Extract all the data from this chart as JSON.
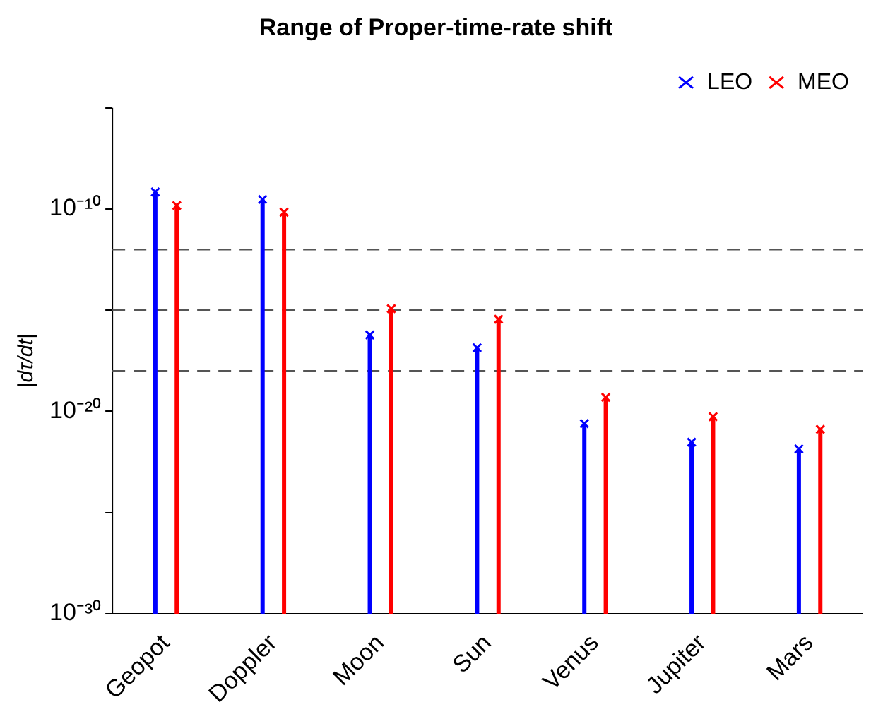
{
  "chart_data": {
    "type": "lollipop",
    "title": "Range of Proper-time-rate shift",
    "ylabel": "|dτ/dt|",
    "categories": [
      "Geopot",
      "Doppler",
      "Moon",
      "Sun",
      "Venus",
      "Jupiter",
      "Mars"
    ],
    "series": [
      {
        "name": "LEO",
        "color": "#0000ff",
        "values": [
          7e-10,
          3e-10,
          6e-17,
          1.4e-17,
          2.5e-21,
          3e-22,
          1.4e-22
        ]
      },
      {
        "name": "MEO",
        "color": "#ff0000",
        "values": [
          1.5e-10,
          7e-11,
          1.2e-15,
          3.6e-16,
          5e-20,
          5.5e-21,
          1.3e-21
        ]
      }
    ],
    "log": true,
    "ylim": [
      1e-30,
      1e-05
    ],
    "yticks": [
      {
        "value": 1e-30,
        "label": "10⁻³⁰"
      },
      {
        "value": 1e-25,
        "label": null
      },
      {
        "value": 1e-20,
        "label": "10⁻²⁰"
      },
      {
        "value": 1e-15,
        "label": null
      },
      {
        "value": 1e-10,
        "label": "10⁻¹⁰"
      },
      {
        "value": 1e-05,
        "label": null
      }
    ],
    "ref_lines": [
      {
        "axis": "y",
        "value": 1e-12,
        "color": "#555555",
        "line_style": "dashed"
      },
      {
        "axis": "y",
        "value": 1e-15,
        "color": "#555555",
        "line_style": "dashed"
      },
      {
        "axis": "y",
        "value": 1e-18,
        "color": "#555555",
        "line_style": "dashed"
      }
    ],
    "marker": "cross",
    "legend": "top right"
  }
}
